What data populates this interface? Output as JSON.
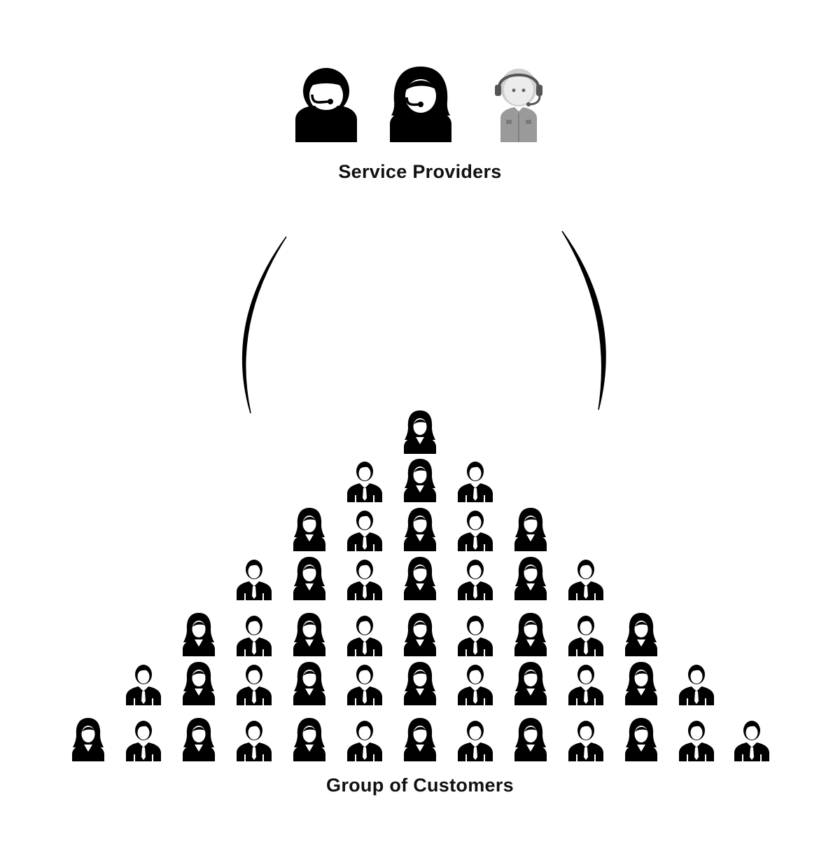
{
  "labels": {
    "providers": "Service Providers",
    "customers": "Group of Customers"
  },
  "providers": [
    {
      "icon": "male-agent-headset-icon",
      "color": "#000000"
    },
    {
      "icon": "female-agent-headset-icon",
      "color": "#000000"
    },
    {
      "icon": "support-robot-headset-icon",
      "color": "#9a9a9a"
    }
  ],
  "customer_rows": [
    [
      "f"
    ],
    [
      "m",
      "f",
      "m"
    ],
    [
      "f",
      "m",
      "f",
      "m",
      "f"
    ],
    [
      "m",
      "f",
      "m",
      "f",
      "m",
      "f",
      "m"
    ],
    [
      "f",
      "m",
      "f",
      "m",
      "f",
      "m",
      "f",
      "m",
      "f"
    ],
    [
      "m",
      "f",
      "m",
      "f",
      "m",
      "f",
      "m",
      "f",
      "m",
      "f",
      "m"
    ],
    [
      "f",
      "m",
      "f",
      "m",
      "f",
      "m",
      "f",
      "m",
      "f",
      "m",
      "f",
      "m",
      "m"
    ]
  ],
  "colors": {
    "icon": "#000000",
    "robot": "#9a9a9a",
    "arc": "#000000"
  }
}
